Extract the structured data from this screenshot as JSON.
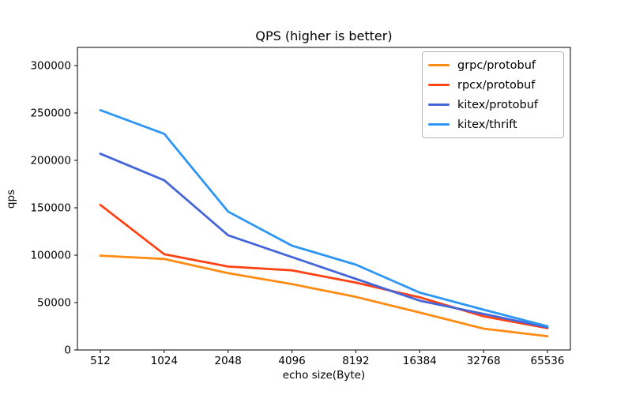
{
  "chart_data": {
    "type": "line",
    "title": "QPS (higher is better)",
    "xlabel": "echo size(Byte)",
    "ylabel": "qps",
    "categories": [
      "512",
      "1024",
      "2048",
      "4096",
      "8192",
      "16384",
      "32768",
      "65536"
    ],
    "series": [
      {
        "name": "grpc/protobuf",
        "color": "#ff8c15",
        "values": [
          99500,
          96000,
          81000,
          69500,
          56000,
          39500,
          22500,
          14500
        ]
      },
      {
        "name": "rpcx/protobuf",
        "color": "#ff4315",
        "values": [
          153000,
          101000,
          88000,
          84000,
          71000,
          55500,
          35500,
          23000
        ]
      },
      {
        "name": "kitex/protobuf",
        "color": "#4566d8",
        "values": [
          207000,
          179000,
          121000,
          98000,
          75000,
          52000,
          38000,
          24000
        ]
      },
      {
        "name": "kitex/thrift",
        "color": "#2d96f4",
        "values": [
          253000,
          228000,
          146000,
          110000,
          90000,
          60500,
          42500,
          25000
        ]
      }
    ],
    "yticks": [
      0,
      50000,
      100000,
      150000,
      200000,
      250000,
      300000
    ],
    "ylim": [
      0,
      319167
    ],
    "grid": false,
    "legend_position": "upper-right",
    "line_width": 2.8,
    "axis_color": "#000000"
  }
}
